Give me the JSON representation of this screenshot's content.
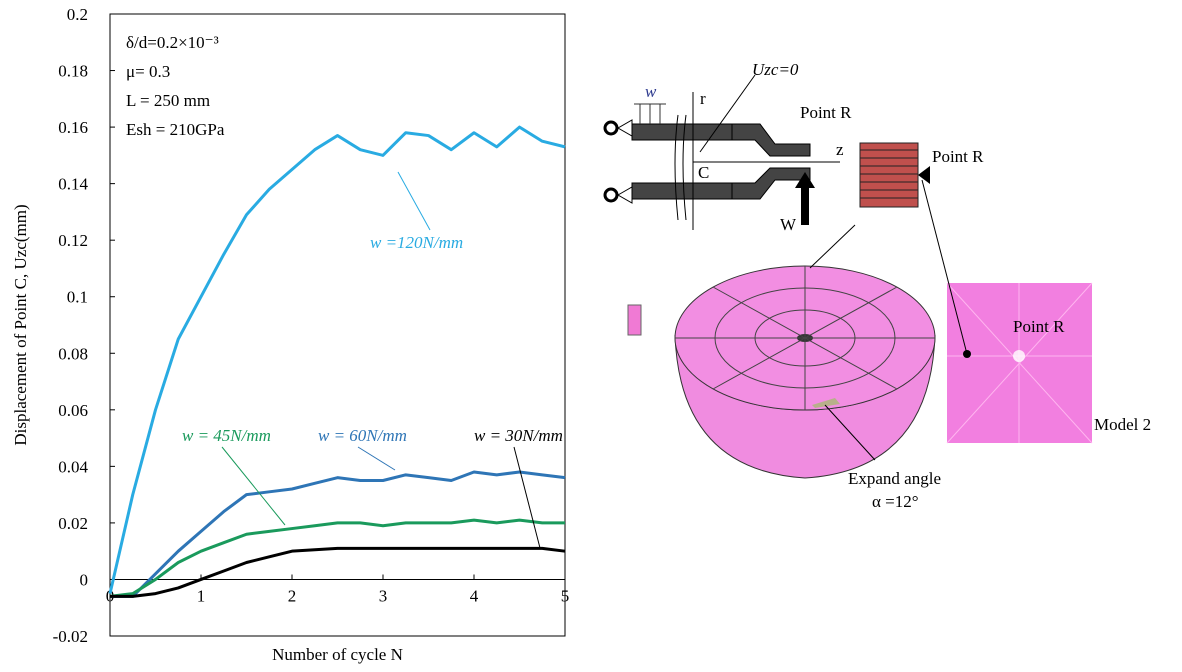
{
  "chart_data": {
    "type": "line",
    "x_label": "Number of cycle N",
    "y_label": "Displacement of  Point C, Uzc(mm)",
    "params": [
      "δ/d=0.2×10⁻³",
      "μ= 0.3",
      "L = 250 mm",
      "Esh = 210GPa"
    ],
    "x": [
      0,
      0.25,
      0.5,
      0.75,
      1,
      1.25,
      1.5,
      1.75,
      2,
      2.25,
      2.5,
      2.75,
      3,
      3.25,
      3.5,
      3.75,
      4,
      4.25,
      4.5,
      4.75,
      5
    ],
    "series": [
      {
        "name": "w =120N/mm",
        "color": "#29abe2",
        "values": [
          -0.005,
          0.03,
          0.06,
          0.085,
          0.1,
          0.115,
          0.129,
          0.138,
          0.145,
          0.152,
          0.157,
          0.152,
          0.15,
          0.158,
          0.157,
          0.152,
          0.158,
          0.153,
          0.16,
          0.155,
          0.153
        ]
      },
      {
        "name": "w = 60N/mm",
        "color": "#2e75b6",
        "values": [
          -0.006,
          -0.006,
          0.002,
          0.01,
          0.017,
          0.024,
          0.03,
          0.031,
          0.032,
          0.034,
          0.036,
          0.035,
          0.035,
          0.037,
          0.036,
          0.035,
          0.038,
          0.037,
          0.038,
          0.037,
          0.036
        ]
      },
      {
        "name": "w = 45N/mm",
        "color": "#1a9a5c",
        "values": [
          -0.006,
          -0.005,
          0.0,
          0.006,
          0.01,
          0.013,
          0.016,
          0.017,
          0.018,
          0.019,
          0.02,
          0.02,
          0.019,
          0.02,
          0.02,
          0.02,
          0.021,
          0.02,
          0.021,
          0.02,
          0.02
        ]
      },
      {
        "name": "w = 30N/mm",
        "color": "#000000",
        "values": [
          -0.006,
          -0.006,
          -0.005,
          -0.003,
          0.0,
          0.003,
          0.006,
          0.008,
          0.01,
          0.0105,
          0.011,
          0.011,
          0.011,
          0.011,
          0.011,
          0.011,
          0.011,
          0.011,
          0.011,
          0.011,
          0.01
        ]
      }
    ],
    "xlim": [
      0,
      5
    ],
    "xticks": [
      0,
      1,
      2,
      3,
      4,
      5
    ],
    "ylim": [
      -0.02,
      0.2
    ],
    "yticks": [
      -0.02,
      0,
      0.02,
      0.04,
      0.06,
      0.08,
      0.1,
      0.12,
      0.14,
      0.16,
      0.18,
      0.2
    ]
  },
  "diagram": {
    "uzc": "Uzc=0",
    "w_load": "w",
    "r_axis": "r",
    "z_axis": "z",
    "point_c": "C",
    "force": "W",
    "point_r_1": "Point R",
    "point_r_2": "Point R",
    "point_r_3": "Point R",
    "model": "Model 2",
    "expand": "Expand angle",
    "alpha": "α =12°"
  }
}
